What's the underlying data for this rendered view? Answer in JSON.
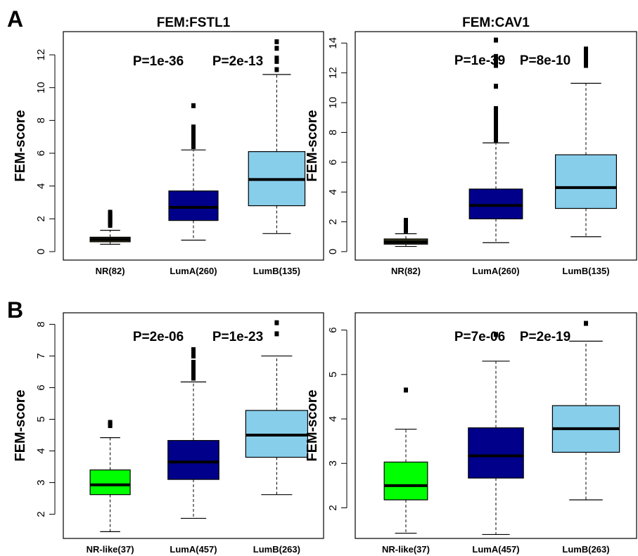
{
  "panel_labels": [
    "A",
    "B"
  ],
  "colors": {
    "NR": "#000000",
    "NR-like": "#00ff00",
    "LumA": "#00008b",
    "LumB": "#87ceeb"
  },
  "chart_data": [
    {
      "type": "boxplot",
      "title": "FEM:FSTL1",
      "ylabel": "FEM-score",
      "ylim": [
        0,
        12.9
      ],
      "yticks": [
        0,
        2,
        4,
        6,
        8,
        10,
        12
      ],
      "categories": [
        "NR(82)",
        "LumA(260)",
        "LumB(135)"
      ],
      "pvalues": [
        "P=1e-36",
        "P=2e-13"
      ],
      "boxes": [
        {
          "group": "NR",
          "color": "#000000",
          "whisker_low": 0.45,
          "q1": 0.6,
          "median": 0.75,
          "q3": 0.88,
          "whisker_high": 1.3,
          "outliers": [
            1.6,
            1.7,
            1.8,
            1.9,
            2.0,
            2.1,
            2.2,
            2.3,
            2.4
          ]
        },
        {
          "group": "LumA",
          "color": "#00008b",
          "whisker_low": 0.7,
          "q1": 1.9,
          "median": 2.7,
          "q3": 3.7,
          "whisker_high": 6.2,
          "outliers": [
            6.4,
            6.6,
            6.8,
            7.0,
            7.2,
            7.4,
            7.6,
            8.9
          ]
        },
        {
          "group": "LumB",
          "color": "#87ceeb",
          "whisker_low": 1.1,
          "q1": 2.8,
          "median": 4.4,
          "q3": 6.1,
          "whisker_high": 10.8,
          "outliers": [
            11.1,
            11.6,
            11.8,
            12.4,
            12.8
          ]
        }
      ]
    },
    {
      "type": "boxplot",
      "title": "FEM:CAV1",
      "ylabel": "FEM-score",
      "ylim": [
        0,
        14.2
      ],
      "yticks": [
        0,
        2,
        4,
        6,
        8,
        10,
        12,
        14
      ],
      "categories": [
        "NR(82)",
        "LumA(260)",
        "LumB(135)"
      ],
      "pvalues": [
        "P=1e-39",
        "P=8e-10"
      ],
      "boxes": [
        {
          "group": "NR",
          "color": "#000000",
          "whisker_low": 0.35,
          "q1": 0.5,
          "median": 0.65,
          "q3": 0.85,
          "whisker_high": 1.2,
          "outliers": [
            1.4,
            1.5,
            1.6,
            1.7,
            1.8,
            1.9,
            2.0,
            2.1
          ]
        },
        {
          "group": "LumA",
          "color": "#00008b",
          "whisker_low": 0.6,
          "q1": 2.2,
          "median": 3.1,
          "q3": 4.2,
          "whisker_high": 7.3,
          "outliers": [
            7.5,
            7.8,
            8.1,
            8.4,
            8.7,
            9.0,
            9.3,
            9.6,
            11.1,
            12.5,
            12.8,
            13.1,
            14.2
          ]
        },
        {
          "group": "LumB",
          "color": "#87ceeb",
          "whisker_low": 1.0,
          "q1": 2.9,
          "median": 4.3,
          "q3": 6.5,
          "whisker_high": 11.3,
          "outliers": [
            12.5,
            12.8,
            13.1,
            13.3,
            13.6
          ]
        }
      ]
    },
    {
      "type": "boxplot",
      "title": "",
      "ylabel": "FEM-score",
      "ylim": [
        1.5,
        8.1
      ],
      "yticks": [
        2,
        3,
        4,
        5,
        6,
        7,
        8
      ],
      "categories": [
        "NR-like(37)",
        "LumA(457)",
        "LumB(263)"
      ],
      "pvalues": [
        "P=2e-06",
        "P=1e-23"
      ],
      "boxes": [
        {
          "group": "NR-like",
          "color": "#00ff00",
          "whisker_low": 1.45,
          "q1": 2.62,
          "median": 2.93,
          "q3": 3.4,
          "whisker_high": 4.42,
          "outliers": [
            4.8,
            4.85,
            4.9
          ]
        },
        {
          "group": "LumA",
          "color": "#00008b",
          "whisker_low": 1.87,
          "q1": 3.1,
          "median": 3.65,
          "q3": 4.33,
          "whisker_high": 6.18,
          "outliers": [
            6.3,
            6.4,
            6.5,
            6.6,
            6.7,
            6.8,
            7.0,
            7.1,
            7.2
          ]
        },
        {
          "group": "LumB",
          "color": "#87ceeb",
          "whisker_low": 2.62,
          "q1": 3.8,
          "median": 4.5,
          "q3": 5.28,
          "whisker_high": 7.0,
          "outliers": [
            7.7,
            8.05
          ]
        }
      ]
    },
    {
      "type": "boxplot",
      "title": "",
      "ylabel": "FEM-score",
      "ylim": [
        1.5,
        6.2
      ],
      "yticks": [
        2,
        3,
        4,
        5,
        6
      ],
      "categories": [
        "NR-like(37)",
        "LumA(457)",
        "LumB(263)"
      ],
      "pvalues": [
        "P=7e-06",
        "P=2e-19"
      ],
      "boxes": [
        {
          "group": "NR-like",
          "color": "#00ff00",
          "whisker_low": 1.43,
          "q1": 2.18,
          "median": 2.5,
          "q3": 3.03,
          "whisker_high": 3.77,
          "outliers": [
            4.65
          ]
        },
        {
          "group": "LumA",
          "color": "#00008b",
          "whisker_low": 1.4,
          "q1": 2.67,
          "median": 3.17,
          "q3": 3.8,
          "whisker_high": 5.3,
          "outliers": [
            5.9
          ]
        },
        {
          "group": "LumB",
          "color": "#87ceeb",
          "whisker_low": 2.18,
          "q1": 3.25,
          "median": 3.78,
          "q3": 4.3,
          "whisker_high": 5.75,
          "outliers": [
            6.15
          ]
        }
      ]
    }
  ]
}
